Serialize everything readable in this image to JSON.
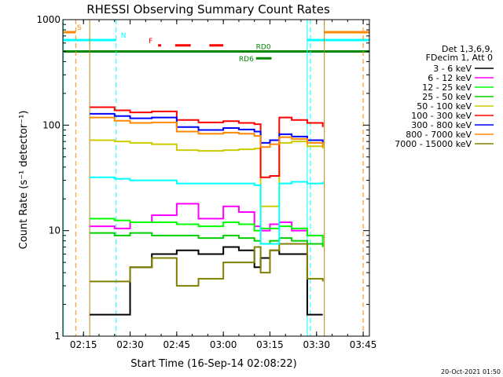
{
  "chart_data": {
    "type": "line",
    "title": "RHESSI Observing Summary Count Rates",
    "xlabel": "Start Time (16-Sep-14 02:08:22)",
    "ylabel": "Count Rate (s⁻¹ detector⁻¹)",
    "y_scale": "log",
    "ylim": [
      1,
      1000
    ],
    "xlim": [
      "02:08:22",
      "03:47:00"
    ],
    "x_ticks": [
      "02:15",
      "02:30",
      "02:45",
      "03:00",
      "03:15",
      "03:30",
      "03:45"
    ],
    "y_ticks": [
      "1",
      "10",
      "100",
      "1000"
    ],
    "grid": false,
    "legend_position": "right",
    "legend_header": [
      "Det 1,3,6,9,",
      "FDecim 1, Att 0"
    ],
    "timestamp": "20-Oct-2021 01:50",
    "flags": [
      {
        "label": "S",
        "color": "#ff8800",
        "segments": [
          [
            "02:08:22",
            "02:12:30"
          ],
          [
            "03:32:30",
            "03:47:00"
          ]
        ],
        "y": 760
      },
      {
        "label": "N",
        "color": "#00ffff",
        "segments": [
          [
            "02:08:22",
            "02:25:30"
          ],
          [
            "03:27:00",
            "03:47:00"
          ]
        ],
        "y": 640
      },
      {
        "label": "F",
        "color": "#ff0000",
        "segments": [
          [
            "02:39:00",
            "02:40:00"
          ],
          [
            "02:44:30",
            "02:49:30"
          ],
          [
            "02:55:30",
            "03:00:00"
          ]
        ],
        "y": 570
      },
      {
        "label": "RD0",
        "color": "#008800",
        "segments": [
          [
            "02:08:22",
            "03:47:00"
          ]
        ],
        "y": 500
      },
      {
        "label": "RD6",
        "color": "#008800",
        "segments": [
          [
            "03:10:30",
            "03:15:30"
          ]
        ],
        "y": 430
      }
    ],
    "vlines": [
      {
        "time": "02:08:30",
        "color": "#00ffff",
        "style": "solid"
      },
      {
        "time": "03:27:00",
        "color": "#00ffff",
        "style": "solid"
      },
      {
        "time": "02:12:30",
        "color": "#ff8800",
        "style": "dashed"
      },
      {
        "time": "03:45:00",
        "color": "#ff8800",
        "style": "dashed"
      },
      {
        "time": "02:25:30",
        "color": "#00ffff",
        "style": "dashed"
      },
      {
        "time": "03:28:00",
        "color": "#00ffff",
        "style": "dashed"
      },
      {
        "time": "02:17:00",
        "color": "#b8860b",
        "style": "solid"
      },
      {
        "time": "03:32:30",
        "color": "#b8860b",
        "style": "solid"
      }
    ],
    "x": [
      "02:17",
      "02:25",
      "02:30",
      "02:37",
      "02:45",
      "02:52",
      "03:00",
      "03:05",
      "03:10",
      "03:12",
      "03:15",
      "03:18",
      "03:22",
      "03:27",
      "03:32"
    ],
    "series": [
      {
        "name": "3 - 6 keV",
        "color": "#000000",
        "values": [
          1.6,
          1.6,
          4.5,
          6.0,
          6.5,
          6.0,
          7.0,
          6.5,
          4.5,
          5.5,
          6.5,
          6.0,
          6.0,
          1.6,
          1.6
        ]
      },
      {
        "name": "6 - 12 keV",
        "color": "#ff00ff",
        "values": [
          11.0,
          10.5,
          12.0,
          14.0,
          18.0,
          13.0,
          17.0,
          15.0,
          11.0,
          10.0,
          11.5,
          12.0,
          10.0,
          9.0,
          8.5
        ]
      },
      {
        "name": "12 - 25 keV",
        "color": "#00ff00",
        "values": [
          13.0,
          12.5,
          12.0,
          12.0,
          11.5,
          11.0,
          12.0,
          11.5,
          10.0,
          10.5,
          10.5,
          11.0,
          10.5,
          9.0,
          7.5
        ]
      },
      {
        "name": "25 - 50 keV",
        "color": "#00d000",
        "values": [
          9.5,
          9.0,
          9.5,
          9.0,
          9.0,
          8.5,
          9.0,
          8.5,
          8.0,
          7.5,
          8.0,
          8.5,
          8.0,
          7.5,
          7.0
        ]
      },
      {
        "name": "50 - 100 keV",
        "color": "#cccc00",
        "values": [
          72,
          70,
          68,
          66,
          58,
          57,
          58,
          59,
          60,
          17,
          17,
          68,
          70,
          63,
          60
        ]
      },
      {
        "name": "100 - 300 keV",
        "color": "#ff0000",
        "values": [
          148,
          138,
          132,
          135,
          112,
          106,
          109,
          105,
          102,
          32,
          33,
          118,
          112,
          105,
          96
        ]
      },
      {
        "name": "300 - 800 keV",
        "color": "#0000ff",
        "values": [
          128,
          122,
          116,
          118,
          96,
          90,
          94,
          91,
          87,
          68,
          72,
          82,
          78,
          72,
          66
        ]
      },
      {
        "name": "800 - 7000 keV",
        "color": "#ff8800",
        "values": [
          118,
          110,
          105,
          106,
          87,
          83,
          85,
          83,
          79,
          62,
          66,
          77,
          74,
          68,
          62
        ]
      },
      {
        "name": "7000 - 15000 keV",
        "color": "#808000",
        "values": [
          3.3,
          3.3,
          4.5,
          5.5,
          3.0,
          3.5,
          5.0,
          5.0,
          7.0,
          4.0,
          6.5,
          7.5,
          7.5,
          3.5,
          3.3
        ]
      },
      {
        "name": "",
        "color": "#00ffff",
        "values": [
          32,
          31,
          30,
          30,
          28,
          28,
          28,
          28,
          27,
          7.5,
          7.5,
          28,
          29,
          28,
          29
        ]
      }
    ]
  }
}
